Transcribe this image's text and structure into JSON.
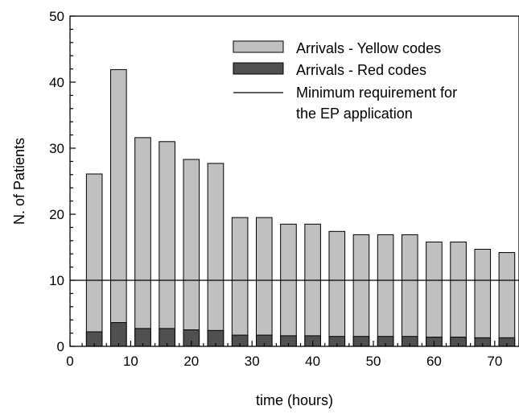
{
  "chart_data": {
    "type": "bar",
    "xlabel": "time (hours)",
    "ylabel": "N. of Patients",
    "xlim": [
      0,
      74
    ],
    "ylim": [
      0,
      50
    ],
    "x_ticks": [
      0,
      10,
      20,
      30,
      40,
      50,
      60,
      70
    ],
    "y_ticks": [
      0,
      10,
      20,
      30,
      40,
      50
    ],
    "grid": false,
    "legend_position": "top-right",
    "x": [
      4,
      8,
      12,
      16,
      20,
      24,
      28,
      32,
      36,
      40,
      44,
      48,
      52,
      56,
      60,
      64,
      68,
      72
    ],
    "bar_width_hours": 2.6,
    "series": [
      {
        "name": "Arrivals - Yellow codes",
        "color": "#c0c0c0",
        "values": [
          26.1,
          41.9,
          31.6,
          31.0,
          28.3,
          27.7,
          19.5,
          19.5,
          18.5,
          18.5,
          17.4,
          16.9,
          16.9,
          16.9,
          15.8,
          15.8,
          14.7,
          14.2
        ]
      },
      {
        "name": "Arrivals - Red codes",
        "color": "#505050",
        "values": [
          2.2,
          3.6,
          2.7,
          2.7,
          2.5,
          2.4,
          1.7,
          1.7,
          1.6,
          1.6,
          1.5,
          1.5,
          1.5,
          1.5,
          1.4,
          1.4,
          1.3,
          1.3
        ]
      }
    ],
    "reference_lines": [
      {
        "name": "Minimum requirement for the EP application",
        "legend_lines": [
          "Minimum requirement for",
          "the EP application"
        ],
        "y": 10,
        "color": "#000000"
      }
    ]
  }
}
